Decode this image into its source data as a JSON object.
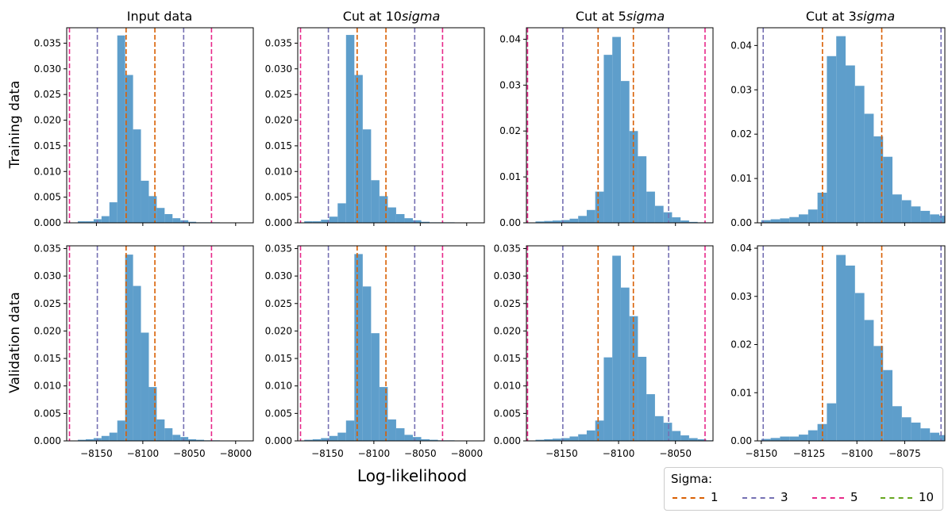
{
  "figure": {
    "xlabel": "Log-likelihood",
    "row_labels": [
      "Training data",
      "Validation data"
    ],
    "column_titles": [
      "Input data",
      "Cut at 10$sigma$",
      "Cut at 5$sigma$",
      "Cut at 3$sigma$"
    ]
  },
  "legend": {
    "title": "Sigma:",
    "entries": [
      {
        "label": "1",
        "color": "#d95f02"
      },
      {
        "label": "3",
        "color": "#7570b3"
      },
      {
        "label": "5",
        "color": "#e7298a"
      },
      {
        "label": "10",
        "color": "#66a61e"
      }
    ]
  },
  "colors": {
    "bar": "#5e9ecb",
    "sigma1": "#d95f02",
    "sigma3": "#7570b3",
    "sigma5": "#e7298a",
    "sigma10": "#66a61e"
  },
  "chart_data": [
    {
      "type": "bar",
      "row": "Training data",
      "title": "Input data",
      "xlim": [
        -8182,
        -7981
      ],
      "ylim": [
        0,
        0.038
      ],
      "xticks": [
        -8150,
        -8100,
        -8050,
        -8000
      ],
      "xtick_labels": [],
      "yticks": [
        0,
        0.005,
        0.01,
        0.015,
        0.02,
        0.025,
        0.03,
        0.035
      ],
      "ytick_labels": [
        "0.000",
        "0.005",
        "0.010",
        "0.015",
        "0.020",
        "0.025",
        "0.030",
        "0.035"
      ],
      "bins": {
        "start": -8170,
        "width": 8.5,
        "heights": [
          0.0003,
          0.0003,
          0.0007,
          0.0013,
          0.004,
          0.0365,
          0.0288,
          0.0182,
          0.0082,
          0.0052,
          0.0029,
          0.0017,
          0.0009,
          0.0005,
          0.0002,
          0.0001,
          0.0001,
          0.0001
        ]
      },
      "vlines": [
        {
          "sigma": 1,
          "x": -8118
        },
        {
          "sigma": 1,
          "x": -8087
        },
        {
          "sigma": 3,
          "x": -8149
        },
        {
          "sigma": 3,
          "x": -8056
        },
        {
          "sigma": 5,
          "x": -8179
        },
        {
          "sigma": 5,
          "x": -8026
        }
      ]
    },
    {
      "type": "bar",
      "row": "Training data",
      "title": "Cut at 10$sigma$",
      "xlim": [
        -8182,
        -7981
      ],
      "ylim": [
        0,
        0.038
      ],
      "xticks": [
        -8150,
        -8100,
        -8050,
        -8000
      ],
      "xtick_labels": [],
      "yticks": [
        0,
        0.005,
        0.01,
        0.015,
        0.02,
        0.025,
        0.03,
        0.035
      ],
      "ytick_labels": [
        "0.000",
        "0.005",
        "0.010",
        "0.015",
        "0.020",
        "0.025",
        "0.030",
        "0.035"
      ],
      "bins": {
        "start": -8175,
        "width": 9,
        "heights": [
          0.0003,
          0.0003,
          0.0006,
          0.0012,
          0.0038,
          0.0366,
          0.0288,
          0.0182,
          0.0083,
          0.0052,
          0.003,
          0.0017,
          0.0009,
          0.0005,
          0.0002,
          0.0001,
          0.0001,
          0.0001
        ]
      },
      "vlines": [
        {
          "sigma": 1,
          "x": -8118
        },
        {
          "sigma": 1,
          "x": -8087
        },
        {
          "sigma": 3,
          "x": -8149
        },
        {
          "sigma": 3,
          "x": -8056
        },
        {
          "sigma": 5,
          "x": -8179
        },
        {
          "sigma": 5,
          "x": -8026
        }
      ]
    },
    {
      "type": "bar",
      "row": "Training data",
      "title": "Cut at 5$sigma$",
      "xlim": [
        -8181,
        -8017
      ],
      "ylim": [
        0,
        0.0425
      ],
      "xticks": [
        -8150,
        -8100,
        -8050
      ],
      "xtick_labels": [],
      "yticks": [
        0,
        0.01,
        0.02,
        0.03,
        0.04
      ],
      "ytick_labels": [
        "0.00",
        "0.01",
        "0.02",
        "0.03",
        "0.04"
      ],
      "bins": {
        "start": -8173,
        "width": 7.5,
        "heights": [
          0.0003,
          0.0004,
          0.0005,
          0.0006,
          0.0009,
          0.0015,
          0.0028,
          0.0068,
          0.0366,
          0.0405,
          0.0309,
          0.02,
          0.0145,
          0.0068,
          0.0037,
          0.0023,
          0.0012,
          0.0005,
          0.0002,
          0.0001,
          0.0001
        ]
      },
      "vlines": [
        {
          "sigma": 1,
          "x": -8118
        },
        {
          "sigma": 1,
          "x": -8087
        },
        {
          "sigma": 3,
          "x": -8149
        },
        {
          "sigma": 3,
          "x": -8056
        },
        {
          "sigma": 5,
          "x": -8180
        },
        {
          "sigma": 5,
          "x": -8024
        }
      ]
    },
    {
      "type": "bar",
      "row": "Training data",
      "title": "Cut at 3$sigma$",
      "xlim": [
        -8152,
        -8054
      ],
      "ylim": [
        0,
        0.044
      ],
      "xticks": [
        -8150,
        -8125,
        -8100,
        -8075
      ],
      "xtick_labels": [],
      "yticks": [
        0,
        0.01,
        0.02,
        0.03,
        0.04
      ],
      "ytick_labels": [
        "0.00",
        "0.01",
        "0.02",
        "0.03",
        "0.04"
      ],
      "bins": {
        "start": -8150,
        "width": 4.9,
        "heights": [
          0.0006,
          0.0008,
          0.001,
          0.0013,
          0.0019,
          0.003,
          0.0068,
          0.0376,
          0.0421,
          0.0355,
          0.0309,
          0.0246,
          0.0195,
          0.0149,
          0.0064,
          0.0051,
          0.0037,
          0.0027,
          0.0019,
          0.0016
        ]
      },
      "vlines": [
        {
          "sigma": 1,
          "x": -8118
        },
        {
          "sigma": 1,
          "x": -8087
        },
        {
          "sigma": 3,
          "x": -8149
        },
        {
          "sigma": 3,
          "x": -8056
        }
      ]
    },
    {
      "type": "bar",
      "row": "Validation data",
      "title": "Input data",
      "xlim": [
        -8182,
        -7981
      ],
      "ylim": [
        0,
        0.0355
      ],
      "xticks": [
        -8150,
        -8100,
        -8050,
        -8000
      ],
      "xtick_labels": [
        "−8150",
        "−8100",
        "−8050",
        "−8000"
      ],
      "yticks": [
        0,
        0.005,
        0.01,
        0.015,
        0.02,
        0.025,
        0.03,
        0.035
      ],
      "ytick_labels": [
        "0.000",
        "0.005",
        "0.010",
        "0.015",
        "0.020",
        "0.025",
        "0.030",
        "0.035"
      ],
      "bins": {
        "start": -8170,
        "width": 8.5,
        "heights": [
          0.0002,
          0.0003,
          0.0005,
          0.0009,
          0.0015,
          0.0037,
          0.0339,
          0.0282,
          0.0197,
          0.0098,
          0.0039,
          0.0023,
          0.0011,
          0.0007,
          0.0003,
          0.0002,
          0.0001,
          0.0001
        ]
      },
      "vlines": [
        {
          "sigma": 1,
          "x": -8118
        },
        {
          "sigma": 1,
          "x": -8087
        },
        {
          "sigma": 3,
          "x": -8149
        },
        {
          "sigma": 3,
          "x": -8056
        },
        {
          "sigma": 5,
          "x": -8179
        },
        {
          "sigma": 5,
          "x": -8026
        }
      ]
    },
    {
      "type": "bar",
      "row": "Validation data",
      "title": "Cut at 10$sigma$",
      "xlim": [
        -8182,
        -7981
      ],
      "ylim": [
        0,
        0.0355
      ],
      "xticks": [
        -8150,
        -8100,
        -8050,
        -8000
      ],
      "xtick_labels": [
        "−8150",
        "−8100",
        "−8050",
        "−8000"
      ],
      "yticks": [
        0,
        0.005,
        0.01,
        0.015,
        0.02,
        0.025,
        0.03,
        0.035
      ],
      "ytick_labels": [
        "0.000",
        "0.005",
        "0.010",
        "0.015",
        "0.020",
        "0.025",
        "0.030",
        "0.035"
      ],
      "bins": {
        "start": -8175,
        "width": 9,
        "heights": [
          0.0002,
          0.0003,
          0.0005,
          0.0009,
          0.0015,
          0.0037,
          0.034,
          0.0281,
          0.0196,
          0.0098,
          0.0039,
          0.0023,
          0.0011,
          0.0007,
          0.0003,
          0.0002,
          0.0001,
          0.0001
        ]
      },
      "vlines": [
        {
          "sigma": 1,
          "x": -8118
        },
        {
          "sigma": 1,
          "x": -8087
        },
        {
          "sigma": 3,
          "x": -8149
        },
        {
          "sigma": 3,
          "x": -8056
        },
        {
          "sigma": 5,
          "x": -8179
        },
        {
          "sigma": 5,
          "x": -8026
        }
      ]
    },
    {
      "type": "bar",
      "row": "Validation data",
      "title": "Cut at 5$sigma$",
      "xlim": [
        -8181,
        -8017
      ],
      "ylim": [
        0,
        0.0355
      ],
      "xticks": [
        -8150,
        -8100,
        -8050
      ],
      "xtick_labels": [
        "−8150",
        "−8100",
        "−8050"
      ],
      "yticks": [
        0,
        0.005,
        0.01,
        0.015,
        0.02,
        0.025,
        0.03,
        0.035
      ],
      "ytick_labels": [
        "0.000",
        "0.005",
        "0.010",
        "0.015",
        "0.020",
        "0.025",
        "0.030",
        "0.035"
      ],
      "bins": {
        "start": -8173,
        "width": 7.5,
        "heights": [
          0.0002,
          0.0003,
          0.0004,
          0.0005,
          0.0008,
          0.0012,
          0.0019,
          0.0037,
          0.0152,
          0.0337,
          0.0279,
          0.0227,
          0.0153,
          0.0085,
          0.0045,
          0.0033,
          0.0018,
          0.001,
          0.0005,
          0.0003,
          0.0001
        ]
      },
      "vlines": [
        {
          "sigma": 1,
          "x": -8118
        },
        {
          "sigma": 1,
          "x": -8087
        },
        {
          "sigma": 3,
          "x": -8149
        },
        {
          "sigma": 3,
          "x": -8056
        },
        {
          "sigma": 5,
          "x": -8180
        },
        {
          "sigma": 5,
          "x": -8024
        }
      ]
    },
    {
      "type": "bar",
      "row": "Validation data",
      "title": "Cut at 3$sigma$",
      "xlim": [
        -8152,
        -8054
      ],
      "ylim": [
        0,
        0.0405
      ],
      "xticks": [
        -8150,
        -8125,
        -8100,
        -8075
      ],
      "xtick_labels": [
        "−8150",
        "−8125",
        "−8100",
        "−8075"
      ],
      "yticks": [
        0,
        0.01,
        0.02,
        0.03,
        0.04
      ],
      "ytick_labels": [
        "0.00",
        "0.01",
        "0.02",
        "0.03",
        "0.04"
      ],
      "bins": {
        "start": -8150,
        "width": 4.9,
        "heights": [
          0.0004,
          0.0006,
          0.0009,
          0.0009,
          0.0013,
          0.0022,
          0.0035,
          0.0078,
          0.0386,
          0.0364,
          0.0307,
          0.0251,
          0.0197,
          0.0147,
          0.0072,
          0.0049,
          0.0038,
          0.0026,
          0.0017,
          0.0012
        ]
      },
      "vlines": [
        {
          "sigma": 1,
          "x": -8118
        },
        {
          "sigma": 1,
          "x": -8087
        },
        {
          "sigma": 3,
          "x": -8149
        },
        {
          "sigma": 3,
          "x": -8056
        }
      ]
    }
  ]
}
